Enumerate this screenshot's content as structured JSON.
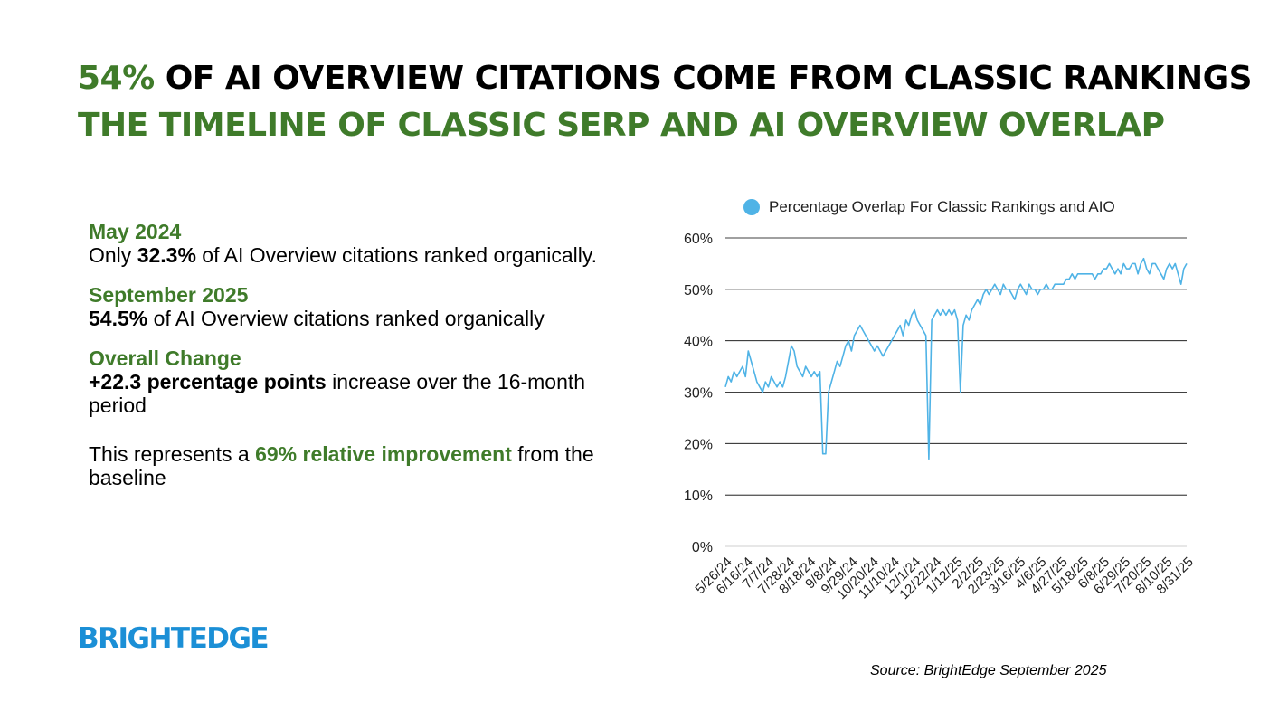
{
  "header": {
    "title_accent": "54%",
    "title_rest": " OF AI OVERVIEW CITATIONS COME FROM CLASSIC RANKINGS",
    "subtitle": "THE TIMELINE OF CLASSIC SERP AND AI OVERVIEW OVERLAP"
  },
  "stats": {
    "may": {
      "heading": "May 2024",
      "pre": "Only ",
      "value": "32.3%",
      "post": " of AI Overview citations ranked organically."
    },
    "sep": {
      "heading": "September 2025",
      "value": "54.5%",
      "post": " of AI Overview citations ranked organically"
    },
    "change": {
      "heading": "Overall Change",
      "value": "+22.3 percentage points",
      "post": " increase over the 16-month period"
    },
    "relative": {
      "pre": "This represents a ",
      "value": "69% relative improvement",
      "post": " from the baseline"
    }
  },
  "brand": {
    "logo": "BRIGHTEDGE",
    "color": "#1b8fd6"
  },
  "source": "Source: BrightEdge September 2025",
  "colors": {
    "accent": "#3f7b2a",
    "line": "#4fb3e6"
  },
  "chart_data": {
    "type": "line",
    "title": "",
    "xlabel": "",
    "ylabel": "",
    "legend": "top",
    "grid": true,
    "ylim": [
      0,
      60
    ],
    "yticks": [
      "0%",
      "10%",
      "20%",
      "30%",
      "40%",
      "50%",
      "60%"
    ],
    "categories": [
      "5/26/24",
      "6/16/24",
      "7/7/24",
      "7/28/24",
      "8/18/24",
      "9/8/24",
      "9/29/24",
      "10/20/24",
      "11/10/24",
      "12/1/24",
      "12/22/24",
      "1/12/25",
      "2/2/25",
      "2/23/25",
      "3/16/25",
      "4/6/25",
      "4/27/25",
      "5/18/25",
      "6/8/25",
      "6/29/25",
      "7/20/25",
      "8/10/25",
      "8/31/25"
    ],
    "series": [
      {
        "name": "Percentage Overlap For Classic Rankings and AIO",
        "color": "#4fb3e6",
        "x": [
          0,
          1,
          2,
          3,
          4,
          5,
          6,
          7,
          8,
          9,
          10,
          11,
          12,
          13,
          14,
          15,
          16,
          17,
          18,
          19,
          20,
          21,
          22,
          23,
          24,
          25,
          26,
          27,
          28,
          29,
          30,
          31,
          32,
          33,
          34,
          35,
          36,
          37,
          38,
          39,
          40,
          41,
          42,
          43,
          44,
          45,
          46,
          47,
          48,
          49,
          50,
          51,
          52,
          53,
          54,
          55,
          56,
          57,
          58,
          59,
          60,
          61,
          62,
          63,
          64,
          65,
          66,
          67,
          68,
          69,
          70,
          71,
          72,
          73,
          74,
          75,
          76,
          77,
          78,
          79,
          80,
          81,
          82,
          83,
          84,
          85,
          86,
          87,
          88,
          89,
          90,
          91,
          92,
          93,
          94,
          95,
          96,
          97,
          98,
          99,
          100,
          101,
          102,
          103,
          104,
          105,
          106,
          107,
          108,
          109,
          110,
          111,
          112,
          113,
          114,
          115,
          116,
          117,
          118,
          119,
          120,
          121,
          122,
          123,
          124,
          125,
          126,
          127,
          128,
          129,
          130,
          131,
          132,
          133,
          134,
          135,
          136,
          137,
          138,
          139,
          140,
          141,
          142,
          143,
          144,
          145,
          146,
          147,
          148,
          149,
          150,
          151,
          152,
          153,
          154,
          155,
          156,
          157,
          158,
          159,
          160,
          161
        ],
        "values": [
          31,
          33,
          32,
          34,
          33,
          34,
          35,
          33,
          38,
          36,
          34,
          32,
          31,
          30,
          32,
          31,
          33,
          32,
          31,
          32,
          31,
          33,
          36,
          39,
          38,
          35,
          34,
          33,
          35,
          34,
          33,
          34,
          33,
          34,
          18,
          18,
          30,
          32,
          34,
          36,
          35,
          37,
          39,
          40,
          38,
          41,
          42,
          43,
          42,
          41,
          40,
          39,
          38,
          39,
          38,
          37,
          38,
          39,
          40,
          41,
          42,
          43,
          41,
          44,
          43,
          45,
          46,
          44,
          43,
          42,
          41,
          17,
          44,
          45,
          46,
          45,
          46,
          45,
          46,
          45,
          46,
          44,
          30,
          43,
          45,
          44,
          46,
          47,
          48,
          47,
          49,
          50,
          49,
          50,
          51,
          50,
          49,
          51,
          50,
          50,
          49,
          48,
          50,
          51,
          50,
          49,
          51,
          50,
          50,
          49,
          50,
          50,
          51,
          50,
          50,
          51,
          51,
          51,
          51,
          52,
          52,
          53,
          52,
          53,
          53,
          53,
          53,
          53,
          53,
          52,
          53,
          53,
          54,
          54,
          55,
          54,
          53,
          54,
          53,
          55,
          54,
          54,
          55,
          55,
          53,
          55,
          56,
          54,
          53,
          55,
          55,
          54,
          53,
          52,
          54,
          55,
          54,
          55,
          53,
          51,
          54,
          55
        ]
      }
    ]
  }
}
